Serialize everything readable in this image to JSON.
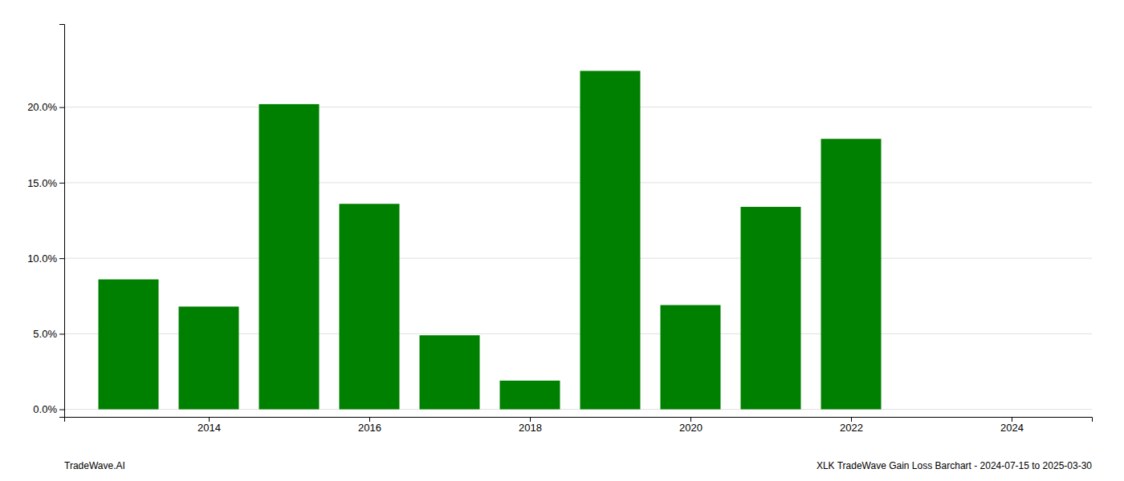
{
  "chart_data": {
    "type": "bar",
    "x": [
      2013,
      2014,
      2015,
      2016,
      2017,
      2018,
      2019,
      2020,
      2021,
      2022,
      2023
    ],
    "values": [
      0.086,
      0.068,
      0.202,
      0.136,
      0.049,
      0.019,
      0.224,
      0.069,
      0.134,
      0.179,
      0.0
    ],
    "color": "#008000",
    "xlim": [
      2012.2,
      2025.0
    ],
    "xticks": [
      2014,
      2016,
      2018,
      2020,
      2022,
      2024
    ],
    "ylim": [
      -0.005,
      0.255
    ],
    "yticks": [
      {
        "value": 0.0,
        "label": "0.0%"
      },
      {
        "value": 0.05,
        "label": "5.0%"
      },
      {
        "value": 0.1,
        "label": "10.0%"
      },
      {
        "value": 0.15,
        "label": "15.0%"
      },
      {
        "value": 0.2,
        "label": "20.0%"
      }
    ],
    "grid": true,
    "annotations": [
      "TradeWave.AI",
      "XLK TradeWave Gain Loss Barchart - 2024-07-15 to 2025-03-30"
    ]
  }
}
